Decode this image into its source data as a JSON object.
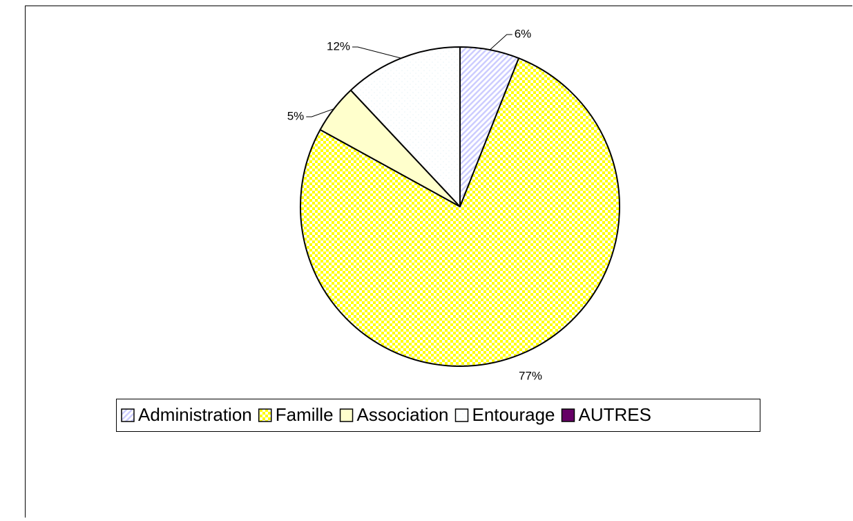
{
  "chart_data": {
    "type": "pie",
    "categories": [
      "Administration",
      "Famille",
      "Association",
      "Entourage",
      "AUTRES"
    ],
    "values": [
      6,
      77,
      5,
      12,
      0
    ],
    "value_labels": [
      "6%",
      "77%",
      "5%",
      "12%",
      null
    ],
    "colors": [
      "#ccccff",
      "#ffff00",
      "#ffffcc",
      "#e8f4f8",
      "#660066"
    ],
    "fill_patterns": [
      "diagonal",
      "checker",
      "solid",
      "dots",
      "solid"
    ],
    "legend": "bottom"
  }
}
